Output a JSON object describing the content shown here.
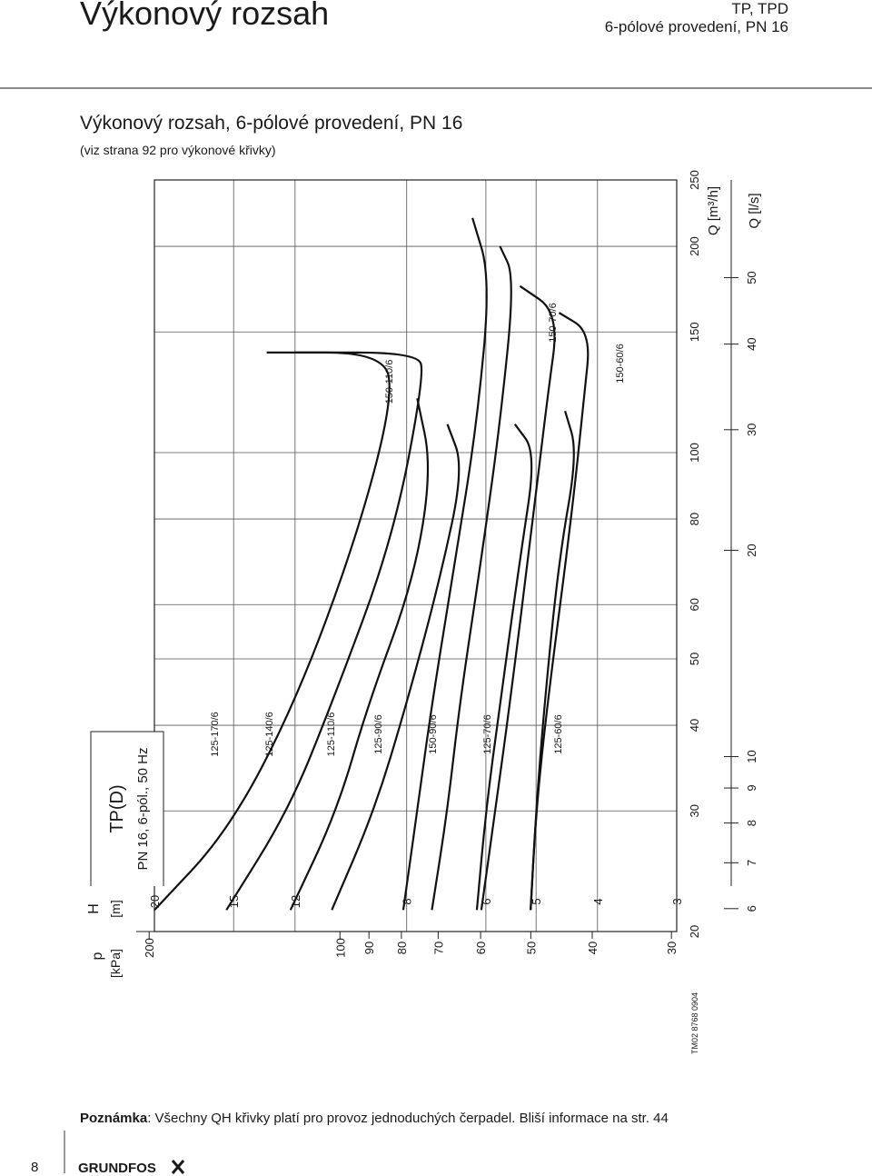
{
  "header": {
    "title": "Výkonový rozsah",
    "series": "TP, TPD",
    "subtitle": "6-pólové provedení, PN 16"
  },
  "section": {
    "title": "Výkonový rozsah, 6-pólové provedení, PN 16",
    "subtitle": "(viz strana 92 pro výkonové křivky)"
  },
  "chart_data": {
    "type": "line",
    "orientation": "rotated-90",
    "legend_title": "TP(D)",
    "legend_subtitle": "PN 16, 6-pól., 50 Hz",
    "xlabel": "Q [m³/h]",
    "x2label": "Q [l/s]",
    "ylabel": "H [m]",
    "y2label": "p [kPa]",
    "x_scale": "log",
    "y_scale": "log",
    "xlim": [
      20,
      250
    ],
    "ylim": [
      3,
      20
    ],
    "x_ticks": [
      20,
      30,
      40,
      50,
      60,
      80,
      100,
      150,
      200,
      250
    ],
    "x2_ticks": [
      6,
      7,
      8,
      9,
      10,
      20,
      30,
      40,
      50
    ],
    "y_ticks": [
      3,
      4,
      5,
      6,
      8,
      12,
      15,
      20
    ],
    "y2_ticks": [
      30,
      40,
      50,
      60,
      70,
      80,
      90,
      100,
      200
    ],
    "grid": true,
    "series": [
      {
        "name": "125-170/6",
        "points": [
          [
            21.5,
            20
          ],
          [
            28,
            15.3
          ],
          [
            43,
            12
          ],
          [
            75,
            9.6
          ],
          [
            120,
            8.4
          ],
          [
            140,
            8.7
          ],
          [
            140,
            13.3
          ]
        ]
      },
      {
        "name": "125-140/6",
        "points": [
          [
            21.5,
            15.4
          ],
          [
            30,
            12.3
          ],
          [
            43,
            10.5
          ],
          [
            75,
            8.4
          ],
          [
            130,
            7.5
          ],
          [
            140,
            7.7
          ],
          [
            140,
            12
          ]
        ]
      },
      {
        "name": "125-110/6",
        "points": [
          [
            21.5,
            12.2
          ],
          [
            30,
            10.3
          ],
          [
            43,
            9.2
          ],
          [
            65,
            7.8
          ],
          [
            95,
            7.3
          ],
          [
            120,
            7.7
          ]
        ]
      },
      {
        "name": "125-90/6",
        "points": [
          [
            21.5,
            10.5
          ],
          [
            30,
            9
          ],
          [
            43,
            8
          ],
          [
            65,
            7.1
          ],
          [
            95,
            6.5
          ],
          [
            110,
            6.9
          ]
        ]
      },
      {
        "name": "150-110/6",
        "points": [
          [
            21.5,
            8.1
          ],
          [
            30,
            7.7
          ],
          [
            43,
            7.3
          ],
          [
            70,
            6.7
          ],
          [
            110,
            6.2
          ],
          [
            180,
            5.9
          ],
          [
            220,
            6.3
          ]
        ]
      },
      {
        "name": "150-90/6",
        "points": [
          [
            21.5,
            7.3
          ],
          [
            30,
            6.9
          ],
          [
            43,
            6.6
          ],
          [
            70,
            6.1
          ],
          [
            110,
            5.7
          ],
          [
            180,
            5.4
          ],
          [
            200,
            5.7
          ]
        ]
      },
      {
        "name": "125-70/6",
        "points": [
          [
            21.5,
            6.2
          ],
          [
            30,
            6
          ],
          [
            43,
            5.7
          ],
          [
            70,
            5.3
          ],
          [
            100,
            5
          ],
          [
            110,
            5.4
          ]
        ]
      },
      {
        "name": "150-70/6",
        "points": [
          [
            21.5,
            6.1
          ],
          [
            30,
            5.8
          ],
          [
            43,
            5.5
          ],
          [
            75,
            5.1
          ],
          [
            120,
            4.8
          ],
          [
            160,
            4.6
          ],
          [
            175,
            5.3
          ]
        ]
      },
      {
        "name": "125-60/6",
        "points": [
          [
            21.5,
            5.1
          ],
          [
            30,
            5
          ],
          [
            43,
            4.85
          ],
          [
            70,
            4.6
          ],
          [
            100,
            4.3
          ],
          [
            115,
            4.5
          ]
        ]
      },
      {
        "name": "150-60/6",
        "points": [
          [
            21.5,
            5.1
          ],
          [
            30,
            5
          ],
          [
            43,
            4.8
          ],
          [
            80,
            4.4
          ],
          [
            120,
            4.2
          ],
          [
            150,
            4.1
          ],
          [
            160,
            4.6
          ]
        ]
      }
    ]
  },
  "note": {
    "label": "Poznámka",
    "text": ": Všechny QH křivky platí pro provoz jednoduchých čerpadel. Bliší informace na str. 44"
  },
  "footer": {
    "page_number": "8",
    "figure_id": "TM02 8768 0904",
    "brand": "GRUNDFOS"
  }
}
